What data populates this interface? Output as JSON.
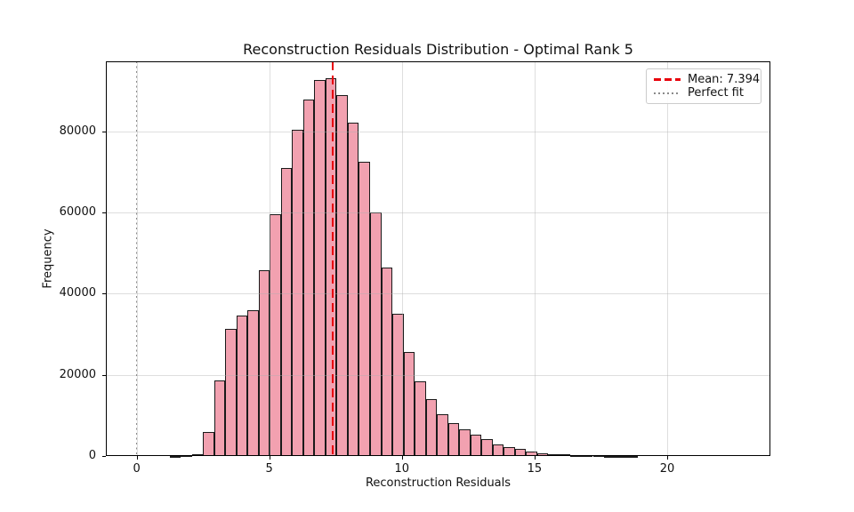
{
  "figure": {
    "title": "Reconstruction Residuals Distribution - Optimal Rank 5",
    "xlabel": "Reconstruction Residuals",
    "ylabel": "Frequency"
  },
  "legend": {
    "items": [
      {
        "label": "Mean: 7.394",
        "color": "#e8000b",
        "style": "dashed"
      },
      {
        "label": "Perfect fit",
        "color": "#8a8a8a",
        "style": "dotted"
      }
    ]
  },
  "chart_data": {
    "type": "bar",
    "subtype": "histogram",
    "title": "Reconstruction Residuals Distribution - Optimal Rank 5",
    "xlabel": "Reconstruction Residuals",
    "ylabel": "Frequency",
    "x_ticks": [
      0,
      5,
      10,
      15,
      20
    ],
    "y_ticks": [
      0,
      20000,
      40000,
      60000,
      80000
    ],
    "xlim": [
      -1.16,
      23.89
    ],
    "ylim": [
      0,
      97260
    ],
    "grid": true,
    "legend_position": "upper right",
    "bar_color": "#f2a1b0",
    "bar_edge_color": "#1a1a1a",
    "bin_width": 0.42,
    "bins_left": [
      1.24,
      1.66,
      2.08,
      2.5,
      2.92,
      3.34,
      3.76,
      4.18,
      4.6,
      5.02,
      5.44,
      5.86,
      6.28,
      6.7,
      7.12,
      7.54,
      7.96,
      8.38,
      8.8,
      9.22,
      9.64,
      10.06,
      10.48,
      10.9,
      11.32,
      11.74,
      12.16,
      12.58,
      13.0,
      13.42,
      13.84,
      14.26,
      14.68,
      15.1,
      15.52,
      15.94,
      16.36,
      16.78,
      17.2,
      17.62,
      18.04,
      18.46
    ],
    "counts": [
      60,
      150,
      340,
      5960,
      18700,
      31300,
      34700,
      35900,
      45800,
      59600,
      71000,
      80400,
      87800,
      92600,
      93100,
      88900,
      82200,
      72400,
      60000,
      46500,
      35000,
      25700,
      18500,
      14000,
      10300,
      8100,
      6600,
      5350,
      4100,
      2950,
      2270,
      1650,
      1170,
      730,
      510,
      370,
      250,
      180,
      140,
      110,
      90,
      70
    ],
    "mean_line": {
      "value": 7.394,
      "label": "Mean: 7.394",
      "color": "#e8000b",
      "style": "dashed"
    },
    "perfect_fit_line": {
      "value": 0,
      "label": "Perfect fit",
      "color": "#8a8a8a",
      "style": "dotted"
    }
  }
}
